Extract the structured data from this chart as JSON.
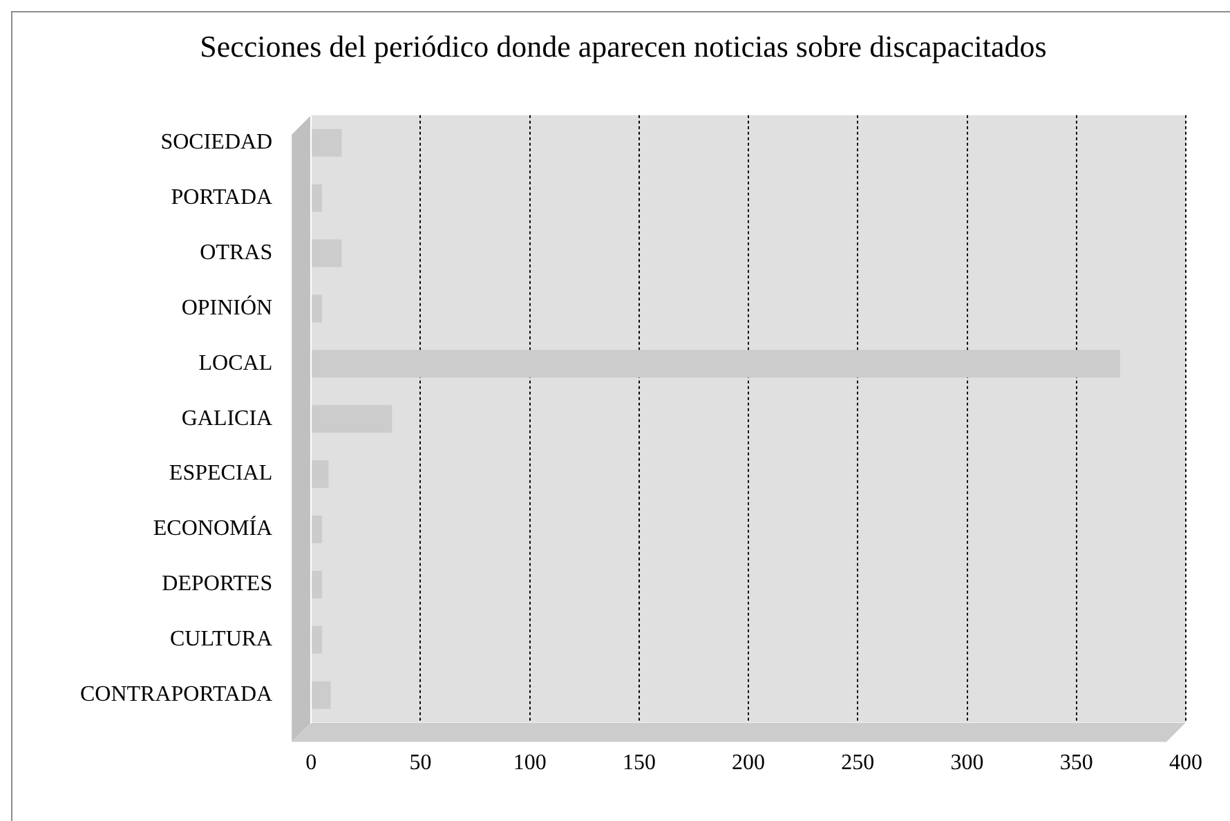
{
  "chart_data": {
    "type": "bar",
    "orientation": "horizontal",
    "title": "Secciones del periódico donde aparecen noticias sobre discapacitados",
    "categories": [
      "SOCIEDAD",
      "PORTADA",
      "OTRAS",
      "OPINIÓN",
      "LOCAL",
      "GALICIA",
      "ESPECIAL",
      "ECONOMÍA",
      "DEPORTES",
      "CULTURA",
      "CONTRAPORTADA"
    ],
    "values": [
      14,
      5,
      14,
      5,
      370,
      37,
      8,
      5,
      5,
      5,
      9
    ],
    "color": "#cccccc",
    "xlim": [
      0,
      400
    ],
    "xticks": [
      0,
      50,
      100,
      150,
      200,
      250,
      300,
      350,
      400
    ],
    "grid": "x"
  }
}
